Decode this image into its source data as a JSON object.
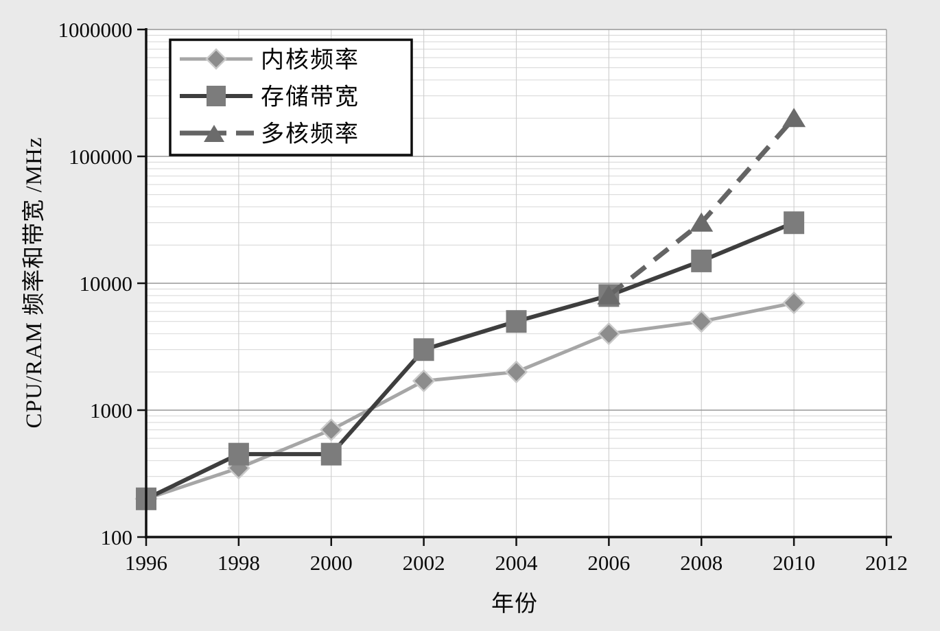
{
  "figure": {
    "background_color": "#eaeaea",
    "plot_background_color": "#ffffff",
    "major_grid_color": "#979797",
    "minor_grid_color": "#d9d9d9",
    "vertical_grid_color": "#cdcdcd",
    "spine_color": "#111111",
    "text_color": "#0a0a0a"
  },
  "chart_data": {
    "type": "line",
    "title": "",
    "xlabel": "年份",
    "ylabel": "CPU/RAM 频率和带宽 /MHz",
    "x_scale": "linear",
    "y_scale": "log",
    "xlim": [
      1996,
      2012
    ],
    "ylim": [
      100,
      1000000
    ],
    "x_ticks": [
      1996,
      1998,
      2000,
      2002,
      2004,
      2006,
      2008,
      2010,
      2012
    ],
    "y_ticks": [
      100,
      1000,
      10000,
      100000,
      1000000
    ],
    "grid": "major and log-minor horizontal, vertical at ticks",
    "legend_position": "top-left",
    "series": [
      {
        "name": "内核频率",
        "marker": "diamond",
        "line_style": "solid",
        "line_color": "#a6a6a6",
        "line_width": 5,
        "marker_color": "#8c8c8c",
        "marker_outline": "#c9c9c9",
        "x": [
          1996,
          1998,
          2000,
          2002,
          2004,
          2006,
          2008,
          2010
        ],
        "values": [
          200,
          350,
          700,
          1700,
          2000,
          4000,
          5000,
          7000
        ]
      },
      {
        "name": "存储带宽",
        "marker": "square",
        "line_style": "solid",
        "line_color": "#3e3e3e",
        "line_width": 6,
        "marker_color": "#7c7c7c",
        "marker_outline": null,
        "x": [
          1996,
          1998,
          2000,
          2002,
          2004,
          2006,
          2008,
          2010
        ],
        "values": [
          200,
          450,
          450,
          3000,
          5000,
          8000,
          15000,
          30000
        ]
      },
      {
        "name": "多核频率",
        "marker": "triangle",
        "line_style": "dashed",
        "line_color": "#646464",
        "line_width": 7,
        "marker_color": "#6b6b6b",
        "marker_outline": null,
        "x": [
          2006,
          2008,
          2010
        ],
        "values": [
          8000,
          30000,
          200000
        ]
      }
    ]
  }
}
